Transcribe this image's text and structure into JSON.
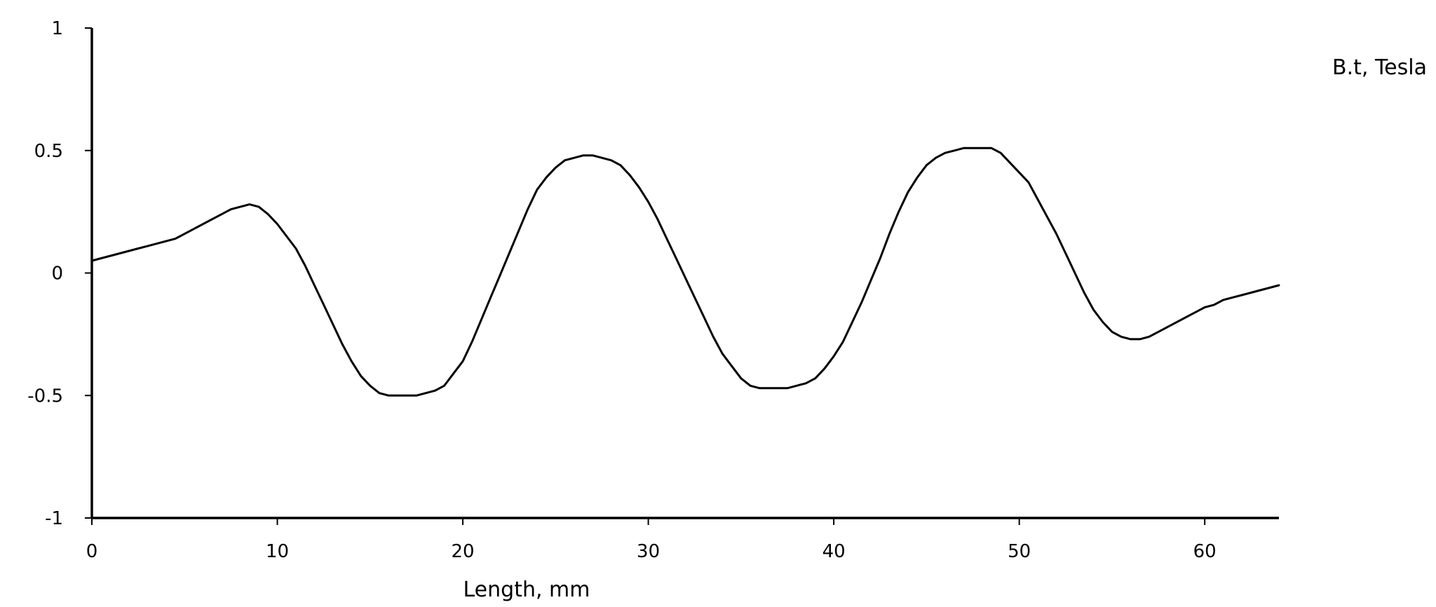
{
  "chart_data": {
    "type": "line",
    "xlabel": "Length, mm",
    "ylabel": "B.t, Tesla",
    "xlim": [
      0,
      64
    ],
    "ylim": [
      -1,
      1
    ],
    "xticks": [
      0,
      10,
      20,
      30,
      40,
      50,
      60
    ],
    "xtick_labels": [
      "0",
      "10",
      "20",
      "30",
      "40",
      "50",
      "60"
    ],
    "yticks": [
      1,
      0.5,
      0,
      -0.5,
      -1
    ],
    "ytick_labels": [
      "1",
      "0.5",
      "0",
      "-0.5",
      "-1"
    ],
    "grid": false,
    "line_color": "#000000",
    "series": [
      {
        "x": [
          0,
          0.5,
          1,
          1.5,
          2,
          2.5,
          3,
          3.5,
          4,
          4.5,
          5,
          5.5,
          6,
          6.5,
          7,
          7.5,
          8,
          8.5,
          9,
          9.5,
          10,
          10.5,
          11,
          11.5,
          12,
          12.5,
          13,
          13.5,
          14,
          14.5,
          15,
          15.5,
          16,
          16.5,
          17,
          17.5,
          18,
          18.5,
          19,
          19.5,
          20,
          20.5,
          21,
          21.5,
          22,
          22.5,
          23,
          23.5,
          24,
          24.5,
          25,
          25.5,
          26,
          26.5,
          27,
          27.5,
          28,
          28.5,
          29,
          29.5,
          30,
          30.5,
          31,
          31.5,
          32,
          32.5,
          33,
          33.5,
          34,
          34.5,
          35,
          35.5,
          36,
          36.5,
          37,
          37.5,
          38,
          38.5,
          39,
          39.5,
          40,
          40.5,
          41,
          41.5,
          42,
          42.5,
          43,
          43.5,
          44,
          44.5,
          45,
          45.5,
          46,
          46.5,
          47,
          47.5,
          48,
          48.5,
          49,
          49.5,
          50,
          50.5,
          51,
          51.5,
          52,
          52.5,
          53,
          53.5,
          54,
          54.5,
          55,
          55.5,
          56,
          56.5,
          57,
          57.5,
          58,
          58.5,
          59,
          59.5,
          60,
          60.5,
          61,
          61.5,
          62,
          62.5,
          63,
          63.5,
          64
        ],
        "values": [
          0.05,
          0.06,
          0.07,
          0.08,
          0.09,
          0.1,
          0.11,
          0.12,
          0.13,
          0.14,
          0.16,
          0.18,
          0.2,
          0.22,
          0.24,
          0.26,
          0.27,
          0.28,
          0.27,
          0.24,
          0.2,
          0.15,
          0.1,
          0.03,
          -0.05,
          -0.13,
          -0.21,
          -0.29,
          -0.36,
          -0.42,
          -0.46,
          -0.49,
          -0.5,
          -0.5,
          -0.5,
          -0.5,
          -0.49,
          -0.48,
          -0.46,
          -0.41,
          -0.36,
          -0.28,
          -0.19,
          -0.1,
          -0.01,
          0.08,
          0.17,
          0.26,
          0.34,
          0.39,
          0.43,
          0.46,
          0.47,
          0.48,
          0.48,
          0.47,
          0.46,
          0.44,
          0.4,
          0.35,
          0.29,
          0.22,
          0.14,
          0.06,
          -0.02,
          -0.1,
          -0.18,
          -0.26,
          -0.33,
          -0.38,
          -0.43,
          -0.46,
          -0.47,
          -0.47,
          -0.47,
          -0.47,
          -0.46,
          -0.45,
          -0.43,
          -0.39,
          -0.34,
          -0.28,
          -0.2,
          -0.12,
          -0.03,
          0.06,
          0.16,
          0.25,
          0.33,
          0.39,
          0.44,
          0.47,
          0.49,
          0.5,
          0.51,
          0.51,
          0.51,
          0.51,
          0.49,
          0.45,
          0.41,
          0.37,
          0.3,
          0.23,
          0.16,
          0.08,
          0.0,
          -0.08,
          -0.15,
          -0.2,
          -0.24,
          -0.26,
          -0.27,
          -0.27,
          -0.26,
          -0.24,
          -0.22,
          -0.2,
          -0.18,
          -0.16,
          -0.14,
          -0.13,
          -0.11,
          -0.1,
          -0.09,
          -0.08,
          -0.07,
          -0.06,
          -0.05
        ]
      }
    ]
  }
}
